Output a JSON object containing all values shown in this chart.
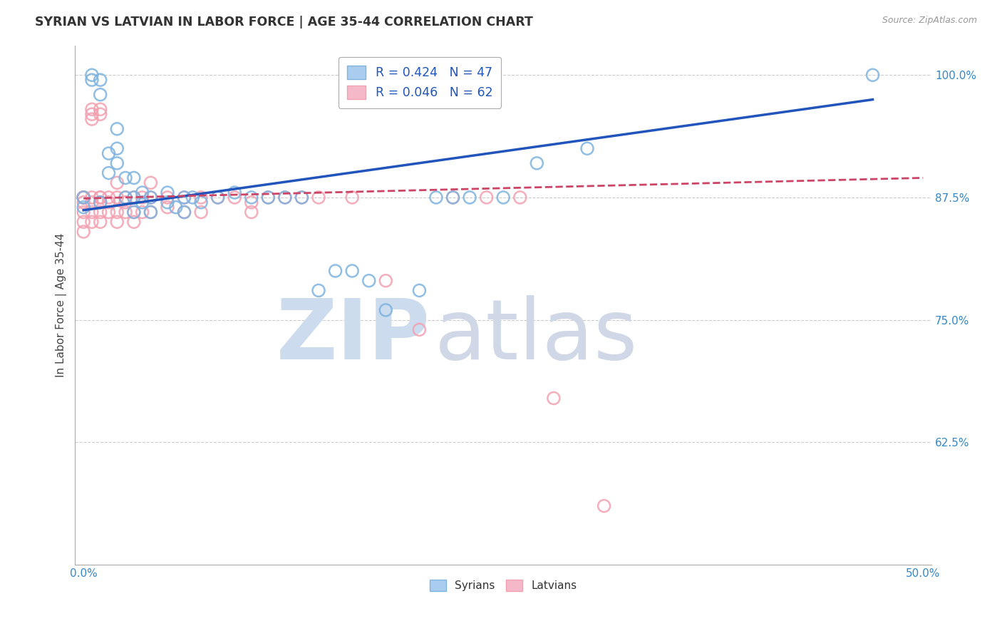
{
  "title": "SYRIAN VS LATVIAN IN LABOR FORCE | AGE 35-44 CORRELATION CHART",
  "source": "Source: ZipAtlas.com",
  "ylabel": "In Labor Force | Age 35-44",
  "xlim": [
    -0.005,
    0.505
  ],
  "ylim": [
    0.5,
    1.03
  ],
  "yticks": [
    0.625,
    0.75,
    0.875,
    1.0
  ],
  "ytick_labels": [
    "62.5%",
    "75.0%",
    "87.5%",
    "100.0%"
  ],
  "xticks": [
    0.0,
    0.1,
    0.2,
    0.3,
    0.4,
    0.5
  ],
  "xtick_labels": [
    "0.0%",
    "",
    "",
    "",
    "",
    "50.0%"
  ],
  "syrian_color": "#7eb3e0",
  "latvian_color": "#f4a0b0",
  "syrian_R": 0.424,
  "syrian_N": 47,
  "latvian_R": 0.046,
  "latvian_N": 62,
  "syrians_x": [
    0.0,
    0.0,
    0.005,
    0.005,
    0.01,
    0.01,
    0.01,
    0.015,
    0.015,
    0.02,
    0.02,
    0.02,
    0.025,
    0.025,
    0.03,
    0.03,
    0.03,
    0.035,
    0.035,
    0.04,
    0.04,
    0.05,
    0.05,
    0.055,
    0.06,
    0.06,
    0.065,
    0.07,
    0.08,
    0.09,
    0.1,
    0.11,
    0.12,
    0.13,
    0.14,
    0.15,
    0.16,
    0.17,
    0.18,
    0.2,
    0.21,
    0.22,
    0.23,
    0.25,
    0.27,
    0.3,
    0.47
  ],
  "syrians_y": [
    0.875,
    0.865,
    0.995,
    1.0,
    0.995,
    0.98,
    0.87,
    0.92,
    0.9,
    0.945,
    0.925,
    0.91,
    0.895,
    0.875,
    0.895,
    0.875,
    0.86,
    0.88,
    0.87,
    0.875,
    0.86,
    0.88,
    0.87,
    0.865,
    0.875,
    0.86,
    0.875,
    0.87,
    0.875,
    0.88,
    0.875,
    0.875,
    0.875,
    0.875,
    0.78,
    0.8,
    0.8,
    0.79,
    0.76,
    0.78,
    0.875,
    0.875,
    0.875,
    0.875,
    0.91,
    0.925,
    1.0
  ],
  "latvians_x": [
    0.0,
    0.0,
    0.0,
    0.0,
    0.0,
    0.0,
    0.0,
    0.0,
    0.005,
    0.005,
    0.005,
    0.005,
    0.005,
    0.005,
    0.005,
    0.01,
    0.01,
    0.01,
    0.01,
    0.01,
    0.01,
    0.01,
    0.015,
    0.015,
    0.015,
    0.02,
    0.02,
    0.02,
    0.02,
    0.025,
    0.025,
    0.025,
    0.03,
    0.03,
    0.03,
    0.035,
    0.035,
    0.04,
    0.04,
    0.04,
    0.05,
    0.05,
    0.06,
    0.06,
    0.07,
    0.07,
    0.08,
    0.09,
    0.1,
    0.1,
    0.11,
    0.12,
    0.13,
    0.14,
    0.16,
    0.18,
    0.2,
    0.22,
    0.24,
    0.26,
    0.28,
    0.31
  ],
  "latvians_y": [
    0.875,
    0.875,
    0.875,
    0.875,
    0.87,
    0.86,
    0.85,
    0.84,
    0.965,
    0.96,
    0.955,
    0.875,
    0.87,
    0.86,
    0.85,
    0.965,
    0.96,
    0.875,
    0.875,
    0.87,
    0.86,
    0.85,
    0.875,
    0.87,
    0.86,
    0.89,
    0.875,
    0.86,
    0.85,
    0.875,
    0.87,
    0.86,
    0.875,
    0.86,
    0.85,
    0.875,
    0.86,
    0.89,
    0.875,
    0.86,
    0.875,
    0.865,
    0.875,
    0.86,
    0.875,
    0.86,
    0.875,
    0.875,
    0.87,
    0.86,
    0.875,
    0.875,
    0.875,
    0.875,
    0.875,
    0.79,
    0.74,
    0.875,
    0.875,
    0.875,
    0.67,
    0.56
  ],
  "syrian_trend_x": [
    0.0,
    0.47
  ],
  "syrian_trend_y": [
    0.862,
    0.975
  ],
  "latvian_trend_x": [
    0.0,
    0.5
  ],
  "latvian_trend_y": [
    0.874,
    0.895
  ]
}
